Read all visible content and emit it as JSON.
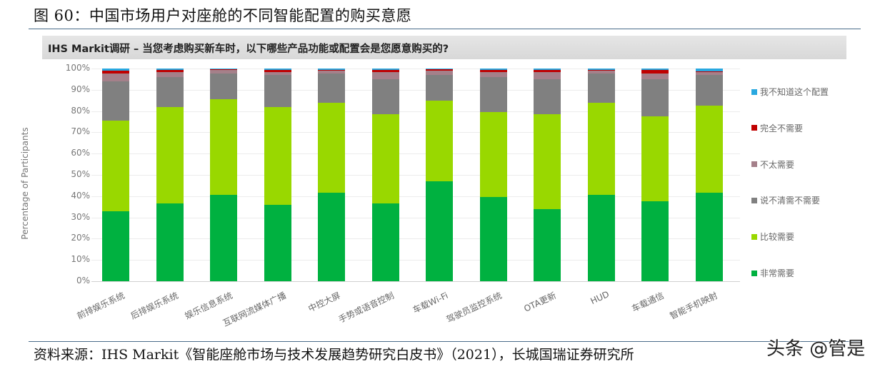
{
  "figure": {
    "title": "图 60：中国市场用户对座舱的不同智能配置的购买意愿",
    "source": "资料来源：IHS Markit《智能座舱市场与技术发展趋势研究白皮书》（2021），长城国瑞证券研究所",
    "watermark": "头条 @管是"
  },
  "chart_header": "IHS Markit调研 – 当您考虑购买新车时，以下哪些产品功能或配置会是您愿意购买的?",
  "y_ticks": [
    "100%",
    "90%",
    "80%",
    "70%",
    "60%",
    "50%",
    "40%",
    "30%",
    "20%",
    "10%",
    "0%"
  ],
  "colors": {
    "非常需要": "#00b140",
    "比较需要": "#99d800",
    "说不清需不需要": "#808080",
    "不太需要": "#a5808a",
    "完全不需要": "#c00000",
    "我不知道这个配置": "#29a8e0"
  },
  "legend": [
    {
      "label": "我不知道这个配置",
      "color": "#29a8e0"
    },
    {
      "label": "完全不需要",
      "color": "#c00000"
    },
    {
      "label": "不太需要",
      "color": "#a5808a"
    },
    {
      "label": "说不清需不需要",
      "color": "#808080"
    },
    {
      "label": "比较需要",
      "color": "#99d800"
    },
    {
      "label": "非常需要",
      "color": "#00b140"
    }
  ],
  "chart_data": {
    "type": "bar",
    "stacked": true,
    "title": "IHS Markit调研 – 当您考虑购买新车时，以下哪些产品功能或配置会是您愿意购买的?",
    "xlabel": "",
    "ylabel": "Percentage of Participants",
    "ylim": [
      0,
      100
    ],
    "y_tick_format": "percent",
    "grid": true,
    "legend_position": "right",
    "categories": [
      "前排娱乐系统",
      "后排娱乐系统",
      "娱乐信息系统",
      "互联网流媒体广播",
      "中控大屏",
      "手势或语音控制",
      "车载Wi-Fi",
      "驾驶员监控系统",
      "OTA更新",
      "HUD",
      "车载通信",
      "智能手机映射"
    ],
    "series": [
      {
        "name": "非常需要",
        "values": [
          33,
          36.5,
          40.5,
          36,
          41.5,
          36.5,
          47,
          39.5,
          34,
          40.5,
          37.5,
          41.5
        ]
      },
      {
        "name": "比较需要",
        "values": [
          42.5,
          45.5,
          45,
          46,
          42.5,
          42,
          38,
          40,
          44.5,
          43.5,
          40,
          41
        ]
      },
      {
        "name": "说不清需不需要",
        "values": [
          18.5,
          14,
          12,
          15,
          13.5,
          16.5,
          12,
          16.5,
          16.5,
          13.5,
          17.5,
          14.5
        ]
      },
      {
        "name": "不太需要",
        "values": [
          3.5,
          2.5,
          2,
          1.5,
          1.5,
          3.5,
          2,
          2.5,
          3.5,
          1.5,
          2.5,
          1.5
        ]
      },
      {
        "name": "完全不需要",
        "values": [
          1.5,
          1,
          0.3,
          1,
          0.5,
          1,
          0.7,
          1,
          0.7,
          0.5,
          2,
          0.2
        ]
      },
      {
        "name": "我不知道这个配置",
        "values": [
          1,
          0.5,
          0.2,
          0.5,
          0.5,
          0.5,
          0.3,
          0.5,
          0.8,
          0.5,
          0.5,
          1.3
        ]
      }
    ]
  }
}
